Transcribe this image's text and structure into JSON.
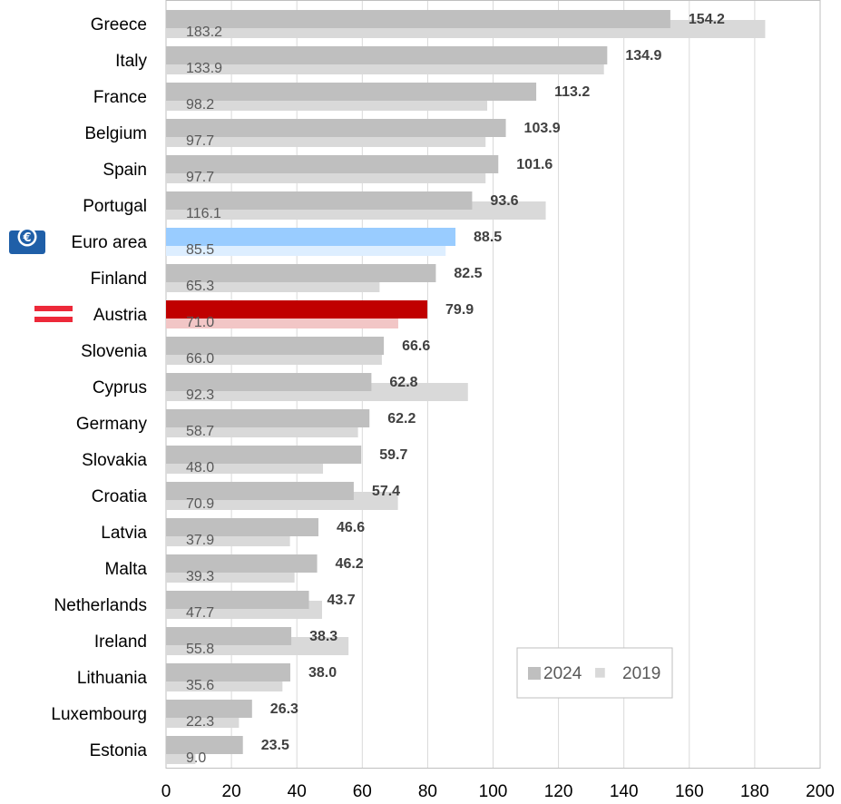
{
  "chart_data": {
    "type": "bar",
    "orientation": "horizontal",
    "categories": [
      "Greece",
      "Italy",
      "France",
      "Belgium",
      "Spain",
      "Portugal",
      "Euro area",
      "Finland",
      "Austria",
      "Slovenia",
      "Cyprus",
      "Germany",
      "Slovakia",
      "Croatia",
      "Latvia",
      "Malta",
      "Netherlands",
      "Ireland",
      "Lithuania",
      "Luxembourg",
      "Estonia"
    ],
    "series": [
      {
        "name": "2024",
        "values": [
          154.2,
          134.9,
          113.2,
          103.9,
          101.6,
          93.6,
          88.5,
          82.5,
          79.9,
          66.6,
          62.8,
          62.2,
          59.7,
          57.4,
          46.6,
          46.2,
          43.7,
          38.3,
          38.0,
          26.3,
          23.5
        ]
      },
      {
        "name": "2019",
        "values": [
          183.2,
          133.9,
          98.2,
          97.7,
          97.7,
          116.1,
          85.5,
          65.3,
          71.0,
          66.0,
          92.3,
          58.7,
          48.0,
          70.9,
          37.9,
          39.3,
          47.7,
          55.8,
          35.6,
          22.3,
          9.0
        ]
      }
    ],
    "data_labels": {
      "2024": [
        "154.2",
        "134.9",
        "113.2",
        "103.9",
        "101.6",
        "93.6",
        "88.5",
        "82.5",
        "79.9",
        "66.6",
        "62.8",
        "62.2",
        "59.7",
        "57.4",
        "46.6",
        "46.2",
        "43.7",
        "38.3",
        "38.0",
        "26.3",
        "23.5"
      ],
      "2019": [
        "183.2",
        "133.9",
        "98.2",
        "97.7",
        "97.7",
        "116.1",
        "85.5",
        "65.3",
        "71.0",
        "66.0",
        "92.3",
        "58.7",
        "48.0",
        "70.9",
        "37.9",
        "39.3",
        "47.7",
        "55.8",
        "35.6",
        "22.3",
        "9.0"
      ]
    },
    "x_ticks": [
      "0",
      "20",
      "40",
      "60",
      "80",
      "100",
      "120",
      "140",
      "160",
      "180",
      "200"
    ],
    "xlim": [
      0,
      200
    ],
    "grid": "vertical",
    "legend_position": "bottom-right",
    "title": "",
    "xlabel": "",
    "ylabel": ""
  },
  "colors": {
    "series_2024": "#bfbfbf",
    "series_2019": "#d9d9d9",
    "euro_area_2024": "#99ccff",
    "euro_area_2019": "#ddeeff",
    "austria_2024": "#c00000",
    "austria_2019": "#f2c6c6",
    "grid": "#d9d9d9",
    "austria_flag_red": "#ed2939",
    "euro_icon_blue": "#1f5fa8"
  },
  "icons": {
    "euro_area": "euro-coin-icon",
    "austria": "austria-flag-icon"
  }
}
